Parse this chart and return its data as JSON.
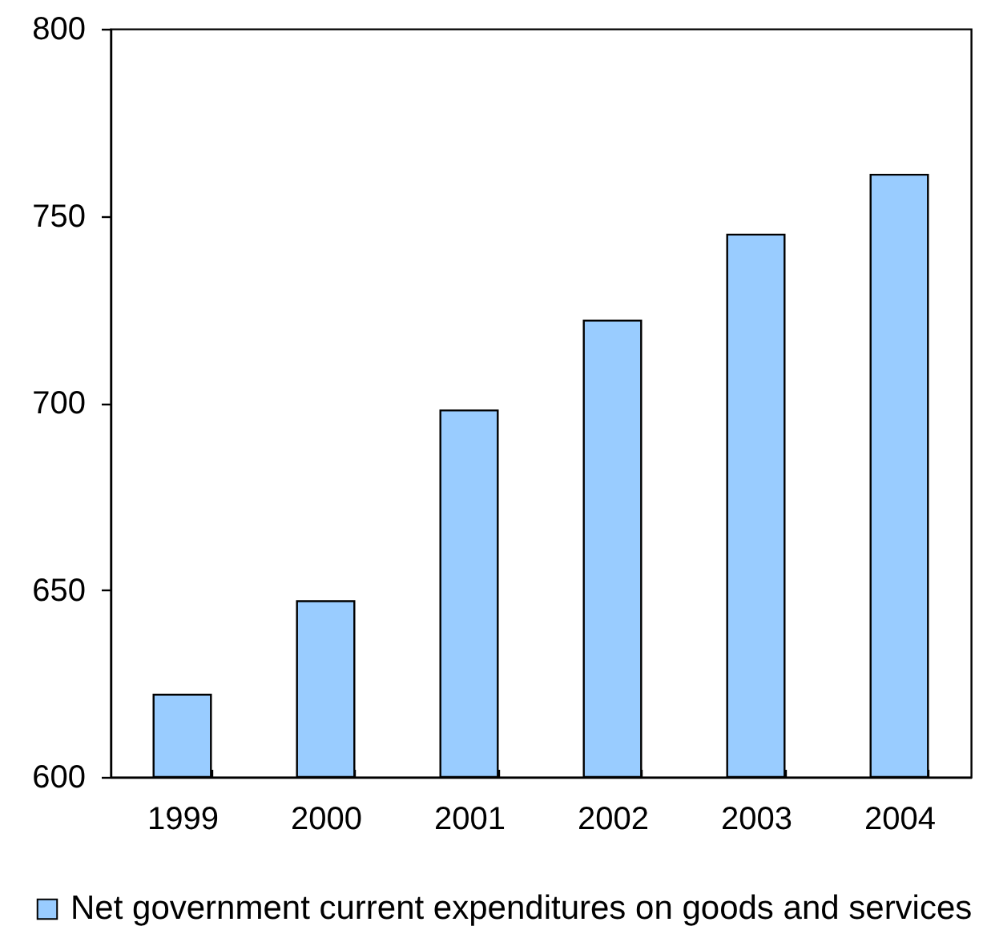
{
  "chart_data": {
    "type": "bar",
    "categories": [
      "1999",
      "2000",
      "2001",
      "2002",
      "2003",
      "2004"
    ],
    "series": [
      {
        "name": "Net government current expenditures on goods and services",
        "color": "#99ccff",
        "values": [
          622,
          647,
          698,
          722,
          745,
          761
        ]
      }
    ],
    "ylim": [
      600,
      800
    ],
    "yticks": [
      600,
      650,
      700,
      750,
      800
    ],
    "legend": "bottom"
  }
}
